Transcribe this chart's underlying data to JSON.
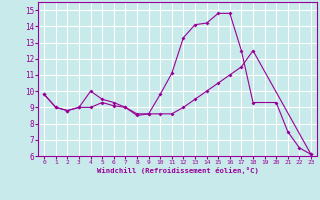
{
  "xlabel": "Windchill (Refroidissement éolien,°C)",
  "bg_color": "#c8eaea",
  "grid_color": "#ffffff",
  "line_color": "#990099",
  "ylim": [
    6,
    15.5
  ],
  "xlim": [
    -0.5,
    23.5
  ],
  "yticks": [
    6,
    7,
    8,
    9,
    10,
    11,
    12,
    13,
    14,
    15
  ],
  "xticks": [
    0,
    1,
    2,
    3,
    4,
    5,
    6,
    7,
    8,
    9,
    10,
    11,
    12,
    13,
    14,
    15,
    16,
    17,
    18,
    19,
    20,
    21,
    22,
    23
  ],
  "line1_x": [
    0,
    1,
    2,
    3,
    4,
    5,
    6,
    7,
    8,
    9,
    10,
    11,
    12,
    13,
    14,
    15,
    16,
    17,
    18,
    20,
    21,
    22,
    23
  ],
  "line1_y": [
    9.8,
    9.0,
    8.8,
    9.0,
    10.0,
    9.5,
    9.3,
    9.0,
    8.5,
    8.6,
    9.8,
    11.1,
    13.3,
    14.1,
    14.2,
    14.8,
    14.8,
    12.5,
    9.3,
    9.3,
    7.5,
    6.5,
    6.1
  ],
  "line2_x": [
    0,
    1,
    2,
    3,
    4,
    5,
    6,
    7,
    8,
    9,
    10,
    11,
    12,
    13,
    14,
    15,
    16,
    17,
    18,
    23
  ],
  "line2_y": [
    9.8,
    9.0,
    8.8,
    9.0,
    9.0,
    9.3,
    9.1,
    9.0,
    8.6,
    8.6,
    8.6,
    8.6,
    9.0,
    9.5,
    10.0,
    10.5,
    11.0,
    11.5,
    12.5,
    6.1
  ]
}
